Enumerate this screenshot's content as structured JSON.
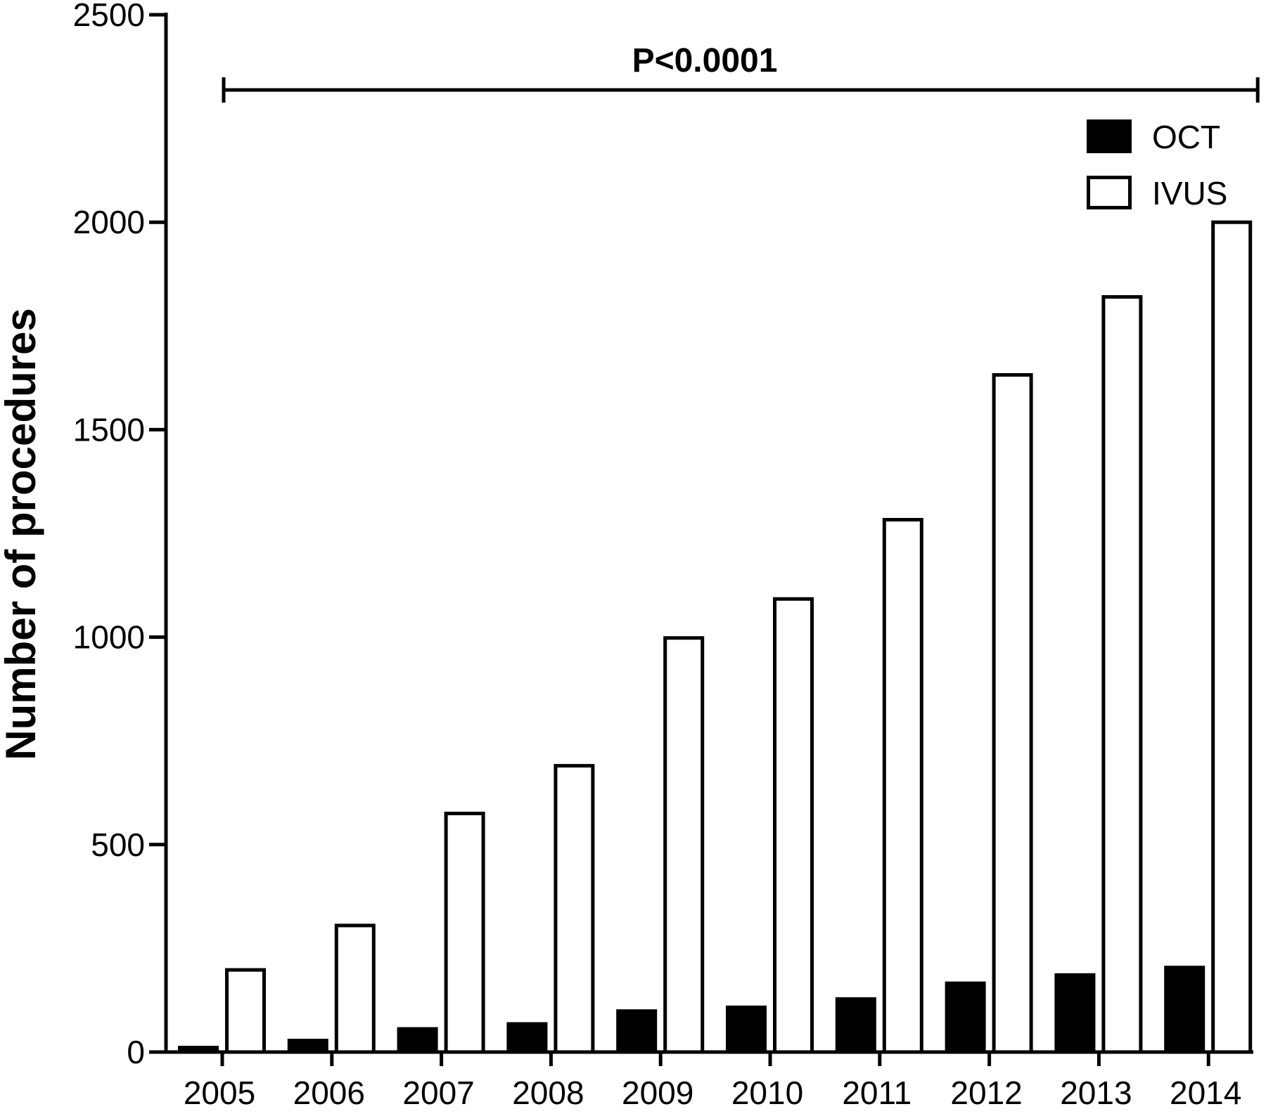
{
  "chart_data": {
    "type": "bar",
    "title": "",
    "xlabel": "",
    "ylabel": "Number of procedures",
    "ylim": [
      0,
      2500
    ],
    "yticks": [
      0,
      500,
      1000,
      1500,
      2000,
      2500
    ],
    "categories": [
      "2005",
      "2006",
      "2007",
      "2008",
      "2009",
      "2010",
      "2011",
      "2012",
      "2013",
      "2014"
    ],
    "series": [
      {
        "name": "OCT",
        "color": "#000000",
        "fill": "solid",
        "values": [
          15,
          32,
          60,
          72,
          103,
          112,
          132,
          170,
          190,
          208
        ]
      },
      {
        "name": "IVUS",
        "color": "#000000",
        "fill": "hollow",
        "values": [
          198,
          305,
          575,
          690,
          998,
          1092,
          1283,
          1632,
          1820,
          2000
        ]
      }
    ],
    "legend": "top-right",
    "grid": false,
    "annotation": {
      "text": "P<0.0001",
      "from_category": "2005",
      "to_category": "2014"
    }
  }
}
